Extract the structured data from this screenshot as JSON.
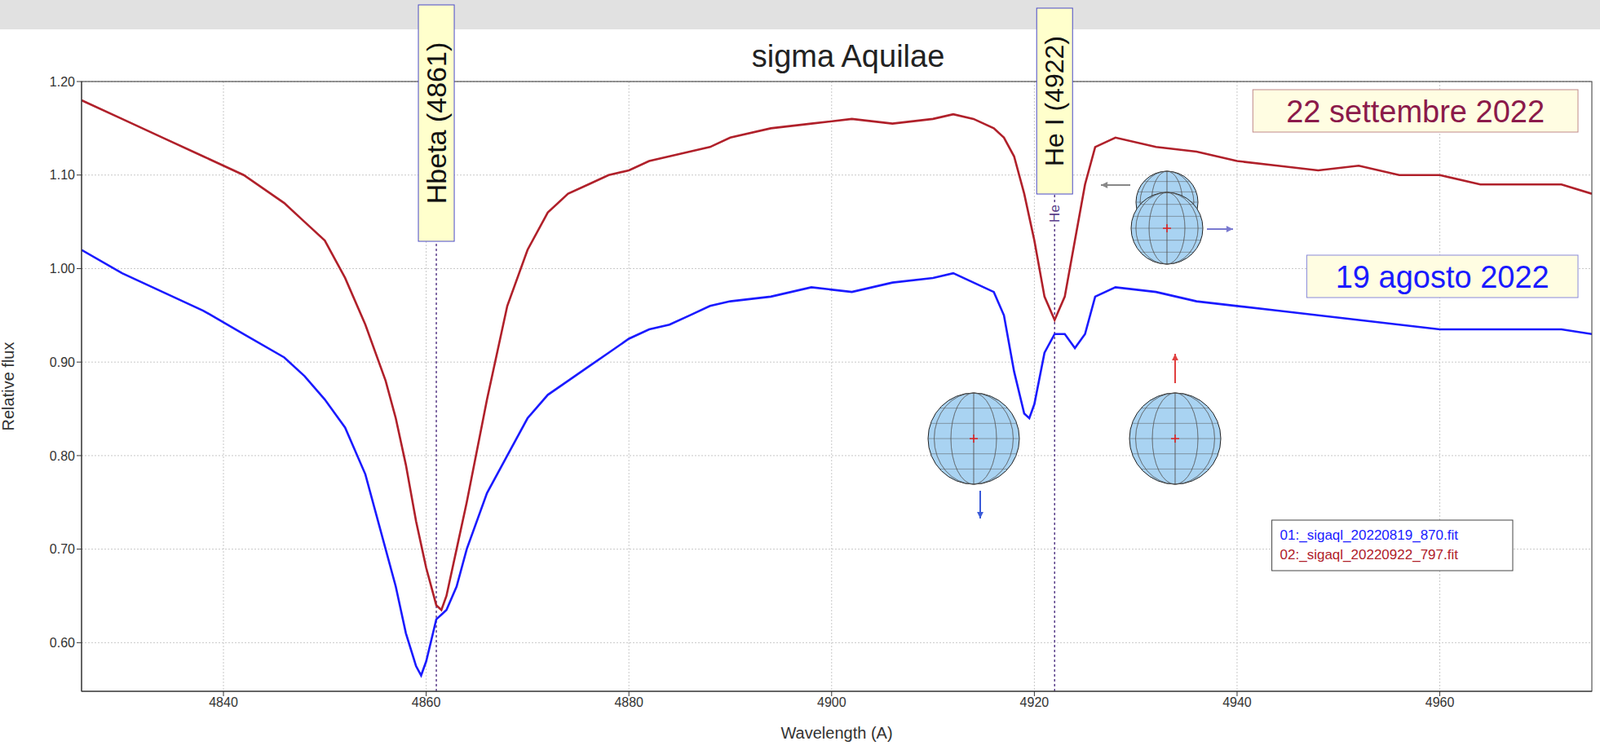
{
  "chart_data": {
    "type": "line",
    "title": "sigma Aquilae",
    "x_label": "Wavelength (A)",
    "y_label": "Relative flux",
    "x": [
      4826,
      4830,
      4834,
      4838,
      4842,
      4846,
      4848,
      4850,
      4852,
      4854,
      4856,
      4857,
      4858,
      4859,
      4859.5,
      4860,
      4861,
      4861.5,
      4862,
      4863,
      4864,
      4866,
      4868,
      4870,
      4872,
      4874,
      4876,
      4878,
      4880,
      4882,
      4884,
      4886,
      4888,
      4890,
      4894,
      4898,
      4902,
      4906,
      4910,
      4912,
      4914,
      4916,
      4917,
      4918,
      4919,
      4919.5,
      4920,
      4921,
      4922,
      4923,
      4924,
      4925,
      4926,
      4928,
      4932,
      4936,
      4940,
      4944,
      4948,
      4952,
      4956,
      4960,
      4964,
      4968,
      4972,
      4975
    ],
    "series": [
      {
        "name": "01:_sigaql_20220819_870.fit",
        "color": "#1a1aff",
        "values": [
          1.02,
          0.995,
          0.975,
          0.955,
          0.93,
          0.905,
          0.885,
          0.86,
          0.83,
          0.78,
          0.7,
          0.66,
          0.61,
          0.575,
          0.565,
          0.58,
          0.625,
          0.63,
          0.635,
          0.66,
          0.7,
          0.76,
          0.8,
          0.84,
          0.865,
          0.88,
          0.895,
          0.91,
          0.925,
          0.935,
          0.94,
          0.95,
          0.96,
          0.965,
          0.97,
          0.98,
          0.975,
          0.985,
          0.99,
          0.995,
          0.985,
          0.975,
          0.95,
          0.89,
          0.845,
          0.84,
          0.855,
          0.91,
          0.93,
          0.93,
          0.915,
          0.93,
          0.97,
          0.98,
          0.975,
          0.965,
          0.96,
          0.955,
          0.95,
          0.945,
          0.94,
          0.935,
          0.935,
          0.935,
          0.935,
          0.93
        ]
      },
      {
        "name": "02:_sigaql_20220922_797.fit",
        "color": "#b0202a",
        "values": [
          1.18,
          1.16,
          1.14,
          1.12,
          1.1,
          1.07,
          1.05,
          1.03,
          0.99,
          0.94,
          0.88,
          0.84,
          0.79,
          0.73,
          0.705,
          0.68,
          0.64,
          0.635,
          0.65,
          0.7,
          0.75,
          0.86,
          0.96,
          1.02,
          1.06,
          1.08,
          1.09,
          1.1,
          1.105,
          1.115,
          1.12,
          1.125,
          1.13,
          1.14,
          1.15,
          1.155,
          1.16,
          1.155,
          1.16,
          1.165,
          1.16,
          1.15,
          1.14,
          1.12,
          1.08,
          1.055,
          1.03,
          0.97,
          0.945,
          0.97,
          1.03,
          1.09,
          1.13,
          1.14,
          1.13,
          1.125,
          1.115,
          1.11,
          1.105,
          1.11,
          1.1,
          1.1,
          1.09,
          1.09,
          1.09,
          1.08
        ]
      }
    ],
    "xlim": [
      4826,
      4975
    ],
    "xticks": [
      4840,
      4860,
      4880,
      4900,
      4920,
      4940,
      4960
    ],
    "ylim": [
      0.548,
      1.2
    ],
    "yticks": [
      {
        "value": 0.6,
        "label": "0.60"
      },
      {
        "value": 0.7,
        "label": "0.70"
      },
      {
        "value": 0.8,
        "label": "0.80"
      },
      {
        "value": 0.9,
        "label": "0.90"
      },
      {
        "value": 1.0,
        "label": "1.00"
      },
      {
        "value": 1.1,
        "label": "1.10"
      },
      {
        "value": 1.2,
        "label": "1.20"
      }
    ],
    "grid": true,
    "legend": "lower right",
    "annotations": [
      {
        "text": "Hbeta (4861)",
        "x": 4861
      },
      {
        "text": "He I (4922)",
        "x": 4922
      },
      {
        "text": "He",
        "x": 4922
      },
      {
        "text": "22 settembre 2022",
        "color": "#8b1a4a"
      },
      {
        "text": "19 agosto 2022",
        "color": "#1a1aff"
      }
    ]
  }
}
